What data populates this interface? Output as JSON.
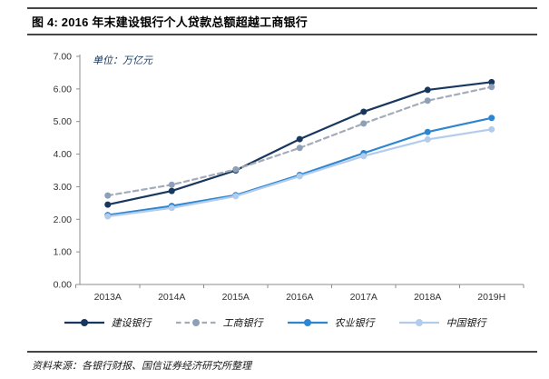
{
  "header": {
    "title": "图 4: 2016 年末建设银行个人贷款总额超越工商银行"
  },
  "chart_data": {
    "type": "line",
    "unit_label": "单位：万亿元",
    "categories": [
      "2013A",
      "2014A",
      "2015A",
      "2016A",
      "2017A",
      "2018A",
      "2019H"
    ],
    "series": [
      {
        "name": "建设银行",
        "color": "#17375E",
        "marker_color": "#17375E",
        "dash": false,
        "values": [
          2.45,
          2.87,
          3.5,
          4.46,
          5.3,
          5.97,
          6.21
        ]
      },
      {
        "name": "工商银行",
        "color": "#A3ACB8",
        "marker_color": "#8DA0B8",
        "dash": true,
        "values": [
          2.73,
          3.06,
          3.53,
          4.19,
          4.94,
          5.64,
          6.06
        ]
      },
      {
        "name": "农业银行",
        "color": "#2E86D0",
        "marker_color": "#2E86D0",
        "dash": false,
        "values": [
          2.13,
          2.41,
          2.74,
          3.36,
          4.03,
          4.68,
          5.11
        ]
      },
      {
        "name": "中国银行",
        "color": "#B3CCEC",
        "marker_color": "#B3CCEC",
        "dash": false,
        "values": [
          2.09,
          2.35,
          2.71,
          3.32,
          3.94,
          4.45,
          4.76
        ]
      }
    ],
    "ylim": [
      0,
      7
    ],
    "ytick_labels": [
      "0.00",
      "1.00",
      "2.00",
      "3.00",
      "4.00",
      "5.00",
      "6.00",
      "7.00"
    ],
    "xlabel": "",
    "ylabel": "",
    "grid": false,
    "legend_position": "bottom",
    "axis_color": "#8C8C8C"
  },
  "footer": {
    "source": "资料来源：各银行财报、国信证券经济研究所整理"
  }
}
